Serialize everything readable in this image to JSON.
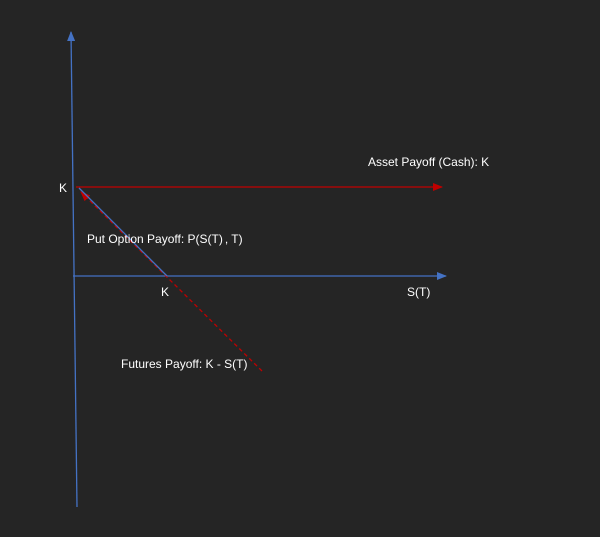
{
  "labels": {
    "y_axis_k": "K",
    "x_axis_k": "K",
    "x_axis_title": "S(T)",
    "asset_payoff": "Asset Payoff (Cash): K",
    "put_option_payoff_prefix": "Put Option Payoff: P(S(T)",
    "put_option_payoff_mid": "",
    "put_option_payoff_suffix": ", T)",
    "futures_payoff": "Futures Payoff: K - S(T)"
  },
  "colors": {
    "background": "#252525",
    "axis": "#4472c4",
    "asset_line": "#c00000",
    "futures_line": "#c00000",
    "put_line": "#4472c4",
    "text": "#ffffff"
  }
}
